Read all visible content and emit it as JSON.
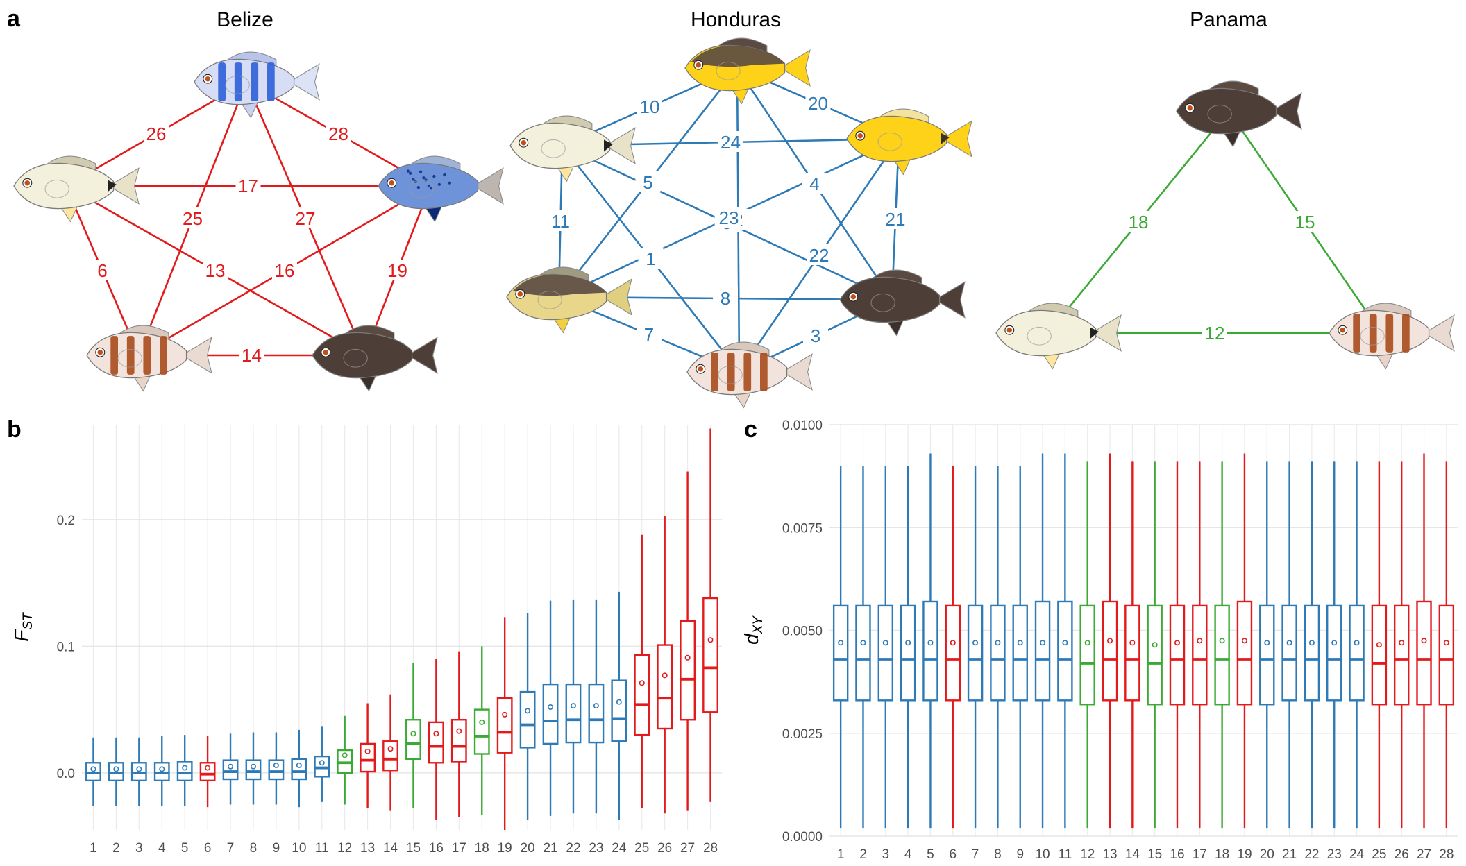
{
  "panel_labels": {
    "a": "a",
    "b": "b",
    "c": "c"
  },
  "colors": {
    "belize": "#e31a1c",
    "honduras": "#2e7ab6",
    "panama": "#3aaa35"
  },
  "fish_icons": {
    "white": "fish-white-icon",
    "blue_striped": "fish-blue-striped-icon",
    "blue": "fish-blue-icon",
    "dark": "fish-dark-icon",
    "brown_barred": "fish-brown-barred-icon",
    "yellow_dark": "fish-yellow-dark-icon",
    "yellow": "fish-yellow-icon",
    "tan": "fish-tan-icon"
  },
  "networks": [
    {
      "title": "Belize",
      "color": "#e31a1c",
      "nodes": [
        {
          "id": "blue_striped",
          "type": "blue_striped"
        },
        {
          "id": "white",
          "type": "white"
        },
        {
          "id": "blue",
          "type": "blue"
        },
        {
          "id": "barred",
          "type": "brown_barred"
        },
        {
          "id": "dark",
          "type": "dark"
        }
      ],
      "edges": [
        {
          "from": "blue_striped",
          "to": "white",
          "label": "26"
        },
        {
          "from": "blue_striped",
          "to": "blue",
          "label": "28"
        },
        {
          "from": "blue_striped",
          "to": "barred",
          "label": "25"
        },
        {
          "from": "blue_striped",
          "to": "dark",
          "label": "27"
        },
        {
          "from": "white",
          "to": "blue",
          "label": "17"
        },
        {
          "from": "white",
          "to": "barred",
          "label": "6"
        },
        {
          "from": "white",
          "to": "dark",
          "label": "13"
        },
        {
          "from": "blue",
          "to": "barred",
          "label": "16"
        },
        {
          "from": "blue",
          "to": "dark",
          "label": "19"
        },
        {
          "from": "barred",
          "to": "dark",
          "label": "14"
        }
      ]
    },
    {
      "title": "Honduras",
      "color": "#2e7ab6",
      "nodes": [
        {
          "id": "top",
          "type": "yellow_dark"
        },
        {
          "id": "white",
          "type": "white"
        },
        {
          "id": "yellow",
          "type": "yellow"
        },
        {
          "id": "tan",
          "type": "tan"
        },
        {
          "id": "dark",
          "type": "dark"
        },
        {
          "id": "barred",
          "type": "brown_barred"
        }
      ],
      "edges": [
        {
          "from": "top",
          "to": "white",
          "label": "10"
        },
        {
          "from": "top",
          "to": "yellow",
          "label": "20"
        },
        {
          "from": "top",
          "to": "tan",
          "label": "5"
        },
        {
          "from": "top",
          "to": "barred",
          "label": "2"
        },
        {
          "from": "top",
          "to": "dark",
          "label": "4"
        },
        {
          "from": "white",
          "to": "yellow",
          "label": "24"
        },
        {
          "from": "white",
          "to": "tan",
          "label": "11"
        },
        {
          "from": "white",
          "to": "dark",
          "label": "9"
        },
        {
          "from": "white",
          "to": "barred",
          "label": "1"
        },
        {
          "from": "yellow",
          "to": "tan",
          "label": "23"
        },
        {
          "from": "yellow",
          "to": "dark",
          "label": "21"
        },
        {
          "from": "yellow",
          "to": "barred",
          "label": "22"
        },
        {
          "from": "tan",
          "to": "dark",
          "label": "8"
        },
        {
          "from": "tan",
          "to": "barred",
          "label": "7"
        },
        {
          "from": "dark",
          "to": "barred",
          "label": "3"
        }
      ]
    },
    {
      "title": "Panama",
      "color": "#3aaa35",
      "nodes": [
        {
          "id": "dark",
          "type": "dark"
        },
        {
          "id": "white",
          "type": "white"
        },
        {
          "id": "barred",
          "type": "brown_barred"
        }
      ],
      "edges": [
        {
          "from": "dark",
          "to": "white",
          "label": "18"
        },
        {
          "from": "dark",
          "to": "barred",
          "label": "15"
        },
        {
          "from": "white",
          "to": "barred",
          "label": "12"
        }
      ]
    }
  ],
  "chart_data": [
    {
      "type": "boxplot",
      "ylabel": "F",
      "ylabel_sub": "ST",
      "ylim": [
        -0.045,
        0.275
      ],
      "yticks": [
        0.0,
        0.1,
        0.2
      ],
      "ytick_labels": [
        "0.0",
        "0.1",
        "0.2"
      ],
      "grid": true,
      "categories": [
        "1",
        "2",
        "3",
        "4",
        "5",
        "6",
        "7",
        "8",
        "9",
        "10",
        "11",
        "12",
        "13",
        "14",
        "15",
        "16",
        "17",
        "18",
        "19",
        "20",
        "21",
        "22",
        "23",
        "24",
        "25",
        "26",
        "27",
        "28"
      ],
      "colors": [
        "#2e7ab6",
        "#2e7ab6",
        "#2e7ab6",
        "#2e7ab6",
        "#2e7ab6",
        "#e31a1c",
        "#2e7ab6",
        "#2e7ab6",
        "#2e7ab6",
        "#2e7ab6",
        "#2e7ab6",
        "#3aaa35",
        "#e31a1c",
        "#e31a1c",
        "#3aaa35",
        "#e31a1c",
        "#e31a1c",
        "#3aaa35",
        "#e31a1c",
        "#2e7ab6",
        "#2e7ab6",
        "#2e7ab6",
        "#2e7ab6",
        "#2e7ab6",
        "#e31a1c",
        "#e31a1c",
        "#e31a1c",
        "#e31a1c"
      ],
      "boxes": [
        {
          "min": -0.026,
          "q1": -0.006,
          "median": 0.0,
          "q3": 0.008,
          "max": 0.028,
          "mean": 0.003
        },
        {
          "min": -0.026,
          "q1": -0.006,
          "median": 0.0,
          "q3": 0.008,
          "max": 0.028,
          "mean": 0.003
        },
        {
          "min": -0.026,
          "q1": -0.006,
          "median": 0.0,
          "q3": 0.008,
          "max": 0.028,
          "mean": 0.003
        },
        {
          "min": -0.026,
          "q1": -0.006,
          "median": 0.0,
          "q3": 0.008,
          "max": 0.029,
          "mean": 0.003
        },
        {
          "min": -0.026,
          "q1": -0.006,
          "median": 0.0,
          "q3": 0.009,
          "max": 0.03,
          "mean": 0.004
        },
        {
          "min": -0.027,
          "q1": -0.006,
          "median": -0.001,
          "q3": 0.008,
          "max": 0.029,
          "mean": 0.004
        },
        {
          "min": -0.025,
          "q1": -0.005,
          "median": 0.001,
          "q3": 0.01,
          "max": 0.031,
          "mean": 0.005
        },
        {
          "min": -0.025,
          "q1": -0.005,
          "median": 0.001,
          "q3": 0.01,
          "max": 0.032,
          "mean": 0.005
        },
        {
          "min": -0.025,
          "q1": -0.005,
          "median": 0.001,
          "q3": 0.01,
          "max": 0.032,
          "mean": 0.006
        },
        {
          "min": -0.027,
          "q1": -0.005,
          "median": 0.001,
          "q3": 0.011,
          "max": 0.034,
          "mean": 0.006
        },
        {
          "min": -0.023,
          "q1": -0.003,
          "median": 0.004,
          "q3": 0.013,
          "max": 0.037,
          "mean": 0.008
        },
        {
          "min": -0.025,
          "q1": 0.0,
          "median": 0.008,
          "q3": 0.018,
          "max": 0.045,
          "mean": 0.014
        },
        {
          "min": -0.028,
          "q1": 0.001,
          "median": 0.01,
          "q3": 0.023,
          "max": 0.055,
          "mean": 0.017
        },
        {
          "min": -0.03,
          "q1": 0.002,
          "median": 0.011,
          "q3": 0.025,
          "max": 0.062,
          "mean": 0.019
        },
        {
          "min": -0.028,
          "q1": 0.011,
          "median": 0.023,
          "q3": 0.042,
          "max": 0.087,
          "mean": 0.031
        },
        {
          "min": -0.037,
          "q1": 0.008,
          "median": 0.021,
          "q3": 0.04,
          "max": 0.09,
          "mean": 0.031
        },
        {
          "min": -0.035,
          "q1": 0.009,
          "median": 0.021,
          "q3": 0.042,
          "max": 0.096,
          "mean": 0.033
        },
        {
          "min": -0.033,
          "q1": 0.015,
          "median": 0.029,
          "q3": 0.05,
          "max": 0.1,
          "mean": 0.04
        },
        {
          "min": -0.045,
          "q1": 0.016,
          "median": 0.032,
          "q3": 0.059,
          "max": 0.123,
          "mean": 0.046
        },
        {
          "min": -0.037,
          "q1": 0.02,
          "median": 0.038,
          "q3": 0.064,
          "max": 0.126,
          "mean": 0.049
        },
        {
          "min": -0.034,
          "q1": 0.023,
          "median": 0.041,
          "q3": 0.07,
          "max": 0.136,
          "mean": 0.052
        },
        {
          "min": -0.032,
          "q1": 0.024,
          "median": 0.042,
          "q3": 0.07,
          "max": 0.137,
          "mean": 0.053
        },
        {
          "min": -0.032,
          "q1": 0.024,
          "median": 0.042,
          "q3": 0.07,
          "max": 0.137,
          "mean": 0.053
        },
        {
          "min": -0.037,
          "q1": 0.025,
          "median": 0.043,
          "q3": 0.073,
          "max": 0.143,
          "mean": 0.056
        },
        {
          "min": -0.028,
          "q1": 0.03,
          "median": 0.054,
          "q3": 0.093,
          "max": 0.188,
          "mean": 0.071
        },
        {
          "min": -0.032,
          "q1": 0.035,
          "median": 0.059,
          "q3": 0.101,
          "max": 0.203,
          "mean": 0.077
        },
        {
          "min": -0.03,
          "q1": 0.042,
          "median": 0.074,
          "q3": 0.12,
          "max": 0.238,
          "mean": 0.091
        },
        {
          "min": -0.023,
          "q1": 0.048,
          "median": 0.083,
          "q3": 0.138,
          "max": 0.272,
          "mean": 0.105
        }
      ]
    },
    {
      "type": "boxplot",
      "ylabel": "d",
      "ylabel_sub": "XY",
      "ylim": [
        0.0,
        0.01
      ],
      "yticks": [
        0.0,
        0.0025,
        0.005,
        0.0075,
        0.01
      ],
      "ytick_labels": [
        "0.0000",
        "0.0025",
        "0.0050",
        "0.0075",
        "0.0100"
      ],
      "grid": true,
      "categories": [
        "1",
        "2",
        "3",
        "4",
        "5",
        "6",
        "7",
        "8",
        "9",
        "10",
        "11",
        "12",
        "13",
        "14",
        "15",
        "16",
        "17",
        "18",
        "19",
        "20",
        "21",
        "22",
        "23",
        "24",
        "25",
        "26",
        "27",
        "28"
      ],
      "colors": [
        "#2e7ab6",
        "#2e7ab6",
        "#2e7ab6",
        "#2e7ab6",
        "#2e7ab6",
        "#e31a1c",
        "#2e7ab6",
        "#2e7ab6",
        "#2e7ab6",
        "#2e7ab6",
        "#2e7ab6",
        "#3aaa35",
        "#e31a1c",
        "#e31a1c",
        "#3aaa35",
        "#e31a1c",
        "#e31a1c",
        "#3aaa35",
        "#e31a1c",
        "#2e7ab6",
        "#2e7ab6",
        "#2e7ab6",
        "#2e7ab6",
        "#2e7ab6",
        "#e31a1c",
        "#e31a1c",
        "#e31a1c",
        "#e31a1c"
      ],
      "boxes": [
        {
          "min": 0.0002,
          "q1": 0.0033,
          "median": 0.0043,
          "q3": 0.0056,
          "max": 0.009,
          "mean": 0.0047
        },
        {
          "min": 0.0002,
          "q1": 0.0033,
          "median": 0.0043,
          "q3": 0.0056,
          "max": 0.009,
          "mean": 0.0047
        },
        {
          "min": 0.0002,
          "q1": 0.0033,
          "median": 0.0043,
          "q3": 0.0056,
          "max": 0.009,
          "mean": 0.0047
        },
        {
          "min": 0.0002,
          "q1": 0.0033,
          "median": 0.0043,
          "q3": 0.0056,
          "max": 0.009,
          "mean": 0.0047
        },
        {
          "min": 0.0002,
          "q1": 0.0033,
          "median": 0.0043,
          "q3": 0.0057,
          "max": 0.0093,
          "mean": 0.0047
        },
        {
          "min": 0.0002,
          "q1": 0.0033,
          "median": 0.0043,
          "q3": 0.0056,
          "max": 0.009,
          "mean": 0.0047
        },
        {
          "min": 0.0002,
          "q1": 0.0033,
          "median": 0.0043,
          "q3": 0.0056,
          "max": 0.009,
          "mean": 0.0047
        },
        {
          "min": 0.0002,
          "q1": 0.0033,
          "median": 0.0043,
          "q3": 0.0056,
          "max": 0.009,
          "mean": 0.0047
        },
        {
          "min": 0.0002,
          "q1": 0.0033,
          "median": 0.0043,
          "q3": 0.0056,
          "max": 0.009,
          "mean": 0.0047
        },
        {
          "min": 0.0002,
          "q1": 0.0033,
          "median": 0.0043,
          "q3": 0.0057,
          "max": 0.0093,
          "mean": 0.0047
        },
        {
          "min": 0.0002,
          "q1": 0.0033,
          "median": 0.0043,
          "q3": 0.0057,
          "max": 0.0093,
          "mean": 0.0047
        },
        {
          "min": 0.0002,
          "q1": 0.0032,
          "median": 0.0042,
          "q3": 0.0056,
          "max": 0.0091,
          "mean": 0.0047
        },
        {
          "min": 0.0002,
          "q1": 0.0033,
          "median": 0.0043,
          "q3": 0.0057,
          "max": 0.0093,
          "mean": 0.00475
        },
        {
          "min": 0.0002,
          "q1": 0.0033,
          "median": 0.0043,
          "q3": 0.0056,
          "max": 0.0091,
          "mean": 0.0047
        },
        {
          "min": 0.0002,
          "q1": 0.0032,
          "median": 0.0042,
          "q3": 0.0056,
          "max": 0.0091,
          "mean": 0.00465
        },
        {
          "min": 0.0002,
          "q1": 0.0032,
          "median": 0.0043,
          "q3": 0.0056,
          "max": 0.0091,
          "mean": 0.0047
        },
        {
          "min": 0.0002,
          "q1": 0.0032,
          "median": 0.0043,
          "q3": 0.0056,
          "max": 0.0091,
          "mean": 0.00475
        },
        {
          "min": 0.0002,
          "q1": 0.0032,
          "median": 0.0043,
          "q3": 0.0056,
          "max": 0.0091,
          "mean": 0.00475
        },
        {
          "min": 0.0002,
          "q1": 0.0032,
          "median": 0.0043,
          "q3": 0.0057,
          "max": 0.0093,
          "mean": 0.00475
        },
        {
          "min": 0.0002,
          "q1": 0.0032,
          "median": 0.0043,
          "q3": 0.0056,
          "max": 0.0091,
          "mean": 0.0047
        },
        {
          "min": 0.0002,
          "q1": 0.0033,
          "median": 0.0043,
          "q3": 0.0056,
          "max": 0.0091,
          "mean": 0.0047
        },
        {
          "min": 0.0002,
          "q1": 0.0033,
          "median": 0.0043,
          "q3": 0.0056,
          "max": 0.0091,
          "mean": 0.0047
        },
        {
          "min": 0.0002,
          "q1": 0.0033,
          "median": 0.0043,
          "q3": 0.0056,
          "max": 0.0091,
          "mean": 0.0047
        },
        {
          "min": 0.0002,
          "q1": 0.0033,
          "median": 0.0043,
          "q3": 0.0056,
          "max": 0.0091,
          "mean": 0.0047
        },
        {
          "min": 0.0002,
          "q1": 0.0032,
          "median": 0.0042,
          "q3": 0.0056,
          "max": 0.0091,
          "mean": 0.00465
        },
        {
          "min": 0.0002,
          "q1": 0.0032,
          "median": 0.0043,
          "q3": 0.0056,
          "max": 0.0091,
          "mean": 0.0047
        },
        {
          "min": 0.0002,
          "q1": 0.0032,
          "median": 0.0043,
          "q3": 0.0057,
          "max": 0.0093,
          "mean": 0.00475
        },
        {
          "min": 0.0002,
          "q1": 0.0032,
          "median": 0.0043,
          "q3": 0.0056,
          "max": 0.0091,
          "mean": 0.0047
        }
      ]
    }
  ]
}
